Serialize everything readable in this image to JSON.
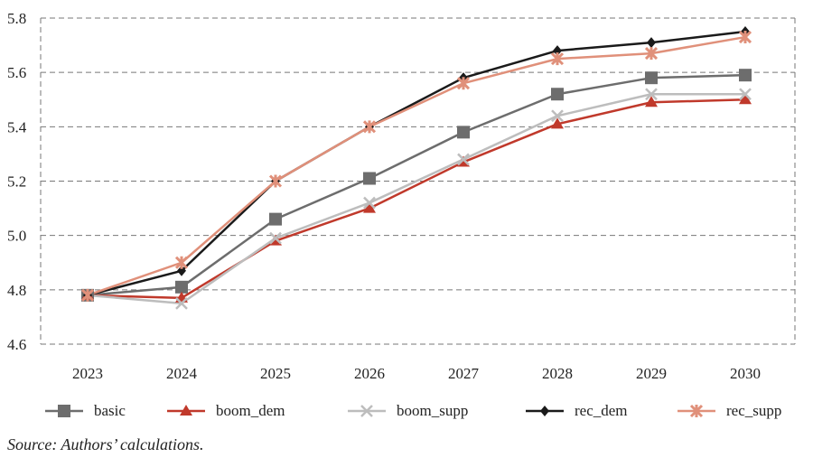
{
  "chart_data": {
    "type": "line",
    "title": "",
    "xlabel": "",
    "ylabel": "",
    "x": [
      "2023",
      "2024",
      "2025",
      "2026",
      "2027",
      "2028",
      "2029",
      "2030"
    ],
    "ylim": [
      4.6,
      5.8
    ],
    "yticks": [
      "4.6",
      "4.8",
      "5.0",
      "5.2",
      "5.4",
      "5.6",
      "5.8"
    ],
    "grid": true,
    "legend_position": "bottom",
    "series": [
      {
        "name": "basic",
        "color": "#6d6d6d",
        "marker": "square",
        "values": [
          4.78,
          4.81,
          5.06,
          5.21,
          5.38,
          5.52,
          5.58,
          5.59
        ]
      },
      {
        "name": "boom_dem",
        "color": "#c0392b",
        "marker": "triangle",
        "values": [
          4.78,
          4.77,
          4.98,
          5.1,
          5.27,
          5.41,
          5.49,
          5.5
        ]
      },
      {
        "name": "boom_supp",
        "color": "#bdbdbd",
        "marker": "x",
        "values": [
          4.78,
          4.75,
          4.99,
          5.12,
          5.28,
          5.44,
          5.52,
          5.52
        ]
      },
      {
        "name": "rec_dem",
        "color": "#1a1a1a",
        "marker": "diamond",
        "values": [
          4.78,
          4.87,
          5.2,
          5.4,
          5.58,
          5.68,
          5.71,
          5.75
        ]
      },
      {
        "name": "rec_supp",
        "color": "#e0907a",
        "marker": "asterisk",
        "values": [
          4.78,
          4.9,
          5.2,
          5.4,
          5.56,
          5.65,
          5.67,
          5.73
        ]
      }
    ]
  },
  "source_note": "Source: Authors’ calculations."
}
